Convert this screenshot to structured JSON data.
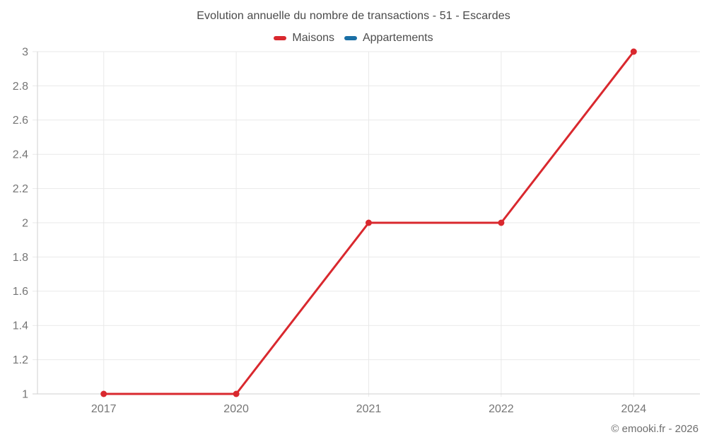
{
  "title": "Evolution annuelle du nombre de transactions - 51 - Escardes",
  "footer": "© emooki.fr - 2026",
  "colors": {
    "maisons_red": "#d9282e",
    "appartements_blue": "#1a6fa5",
    "grid_line": "#e9e9e9",
    "axis_line": "#d2d2d2",
    "tick_label": "#757575",
    "title_text": "#4a4a4a"
  },
  "chart_data": {
    "type": "line",
    "title": "Evolution annuelle du nombre de transactions - 51 - Escardes",
    "categories": [
      "2017",
      "2020",
      "2021",
      "2022",
      "2024"
    ],
    "series": [
      {
        "name": "Maisons",
        "color": "#d9282e",
        "values": [
          1,
          1,
          2,
          2,
          3
        ]
      },
      {
        "name": "Appartements",
        "color": "#1a6fa5",
        "values": []
      }
    ],
    "xlabel": "",
    "ylabel": "",
    "ylim": [
      1,
      3
    ],
    "ytick_step": 0.2,
    "ytick_labels": [
      "1",
      "1.2",
      "1.4",
      "1.6",
      "1.8",
      "2",
      "2.2",
      "2.4",
      "2.6",
      "2.8",
      "3"
    ],
    "grid": true,
    "legend_position": "top"
  }
}
